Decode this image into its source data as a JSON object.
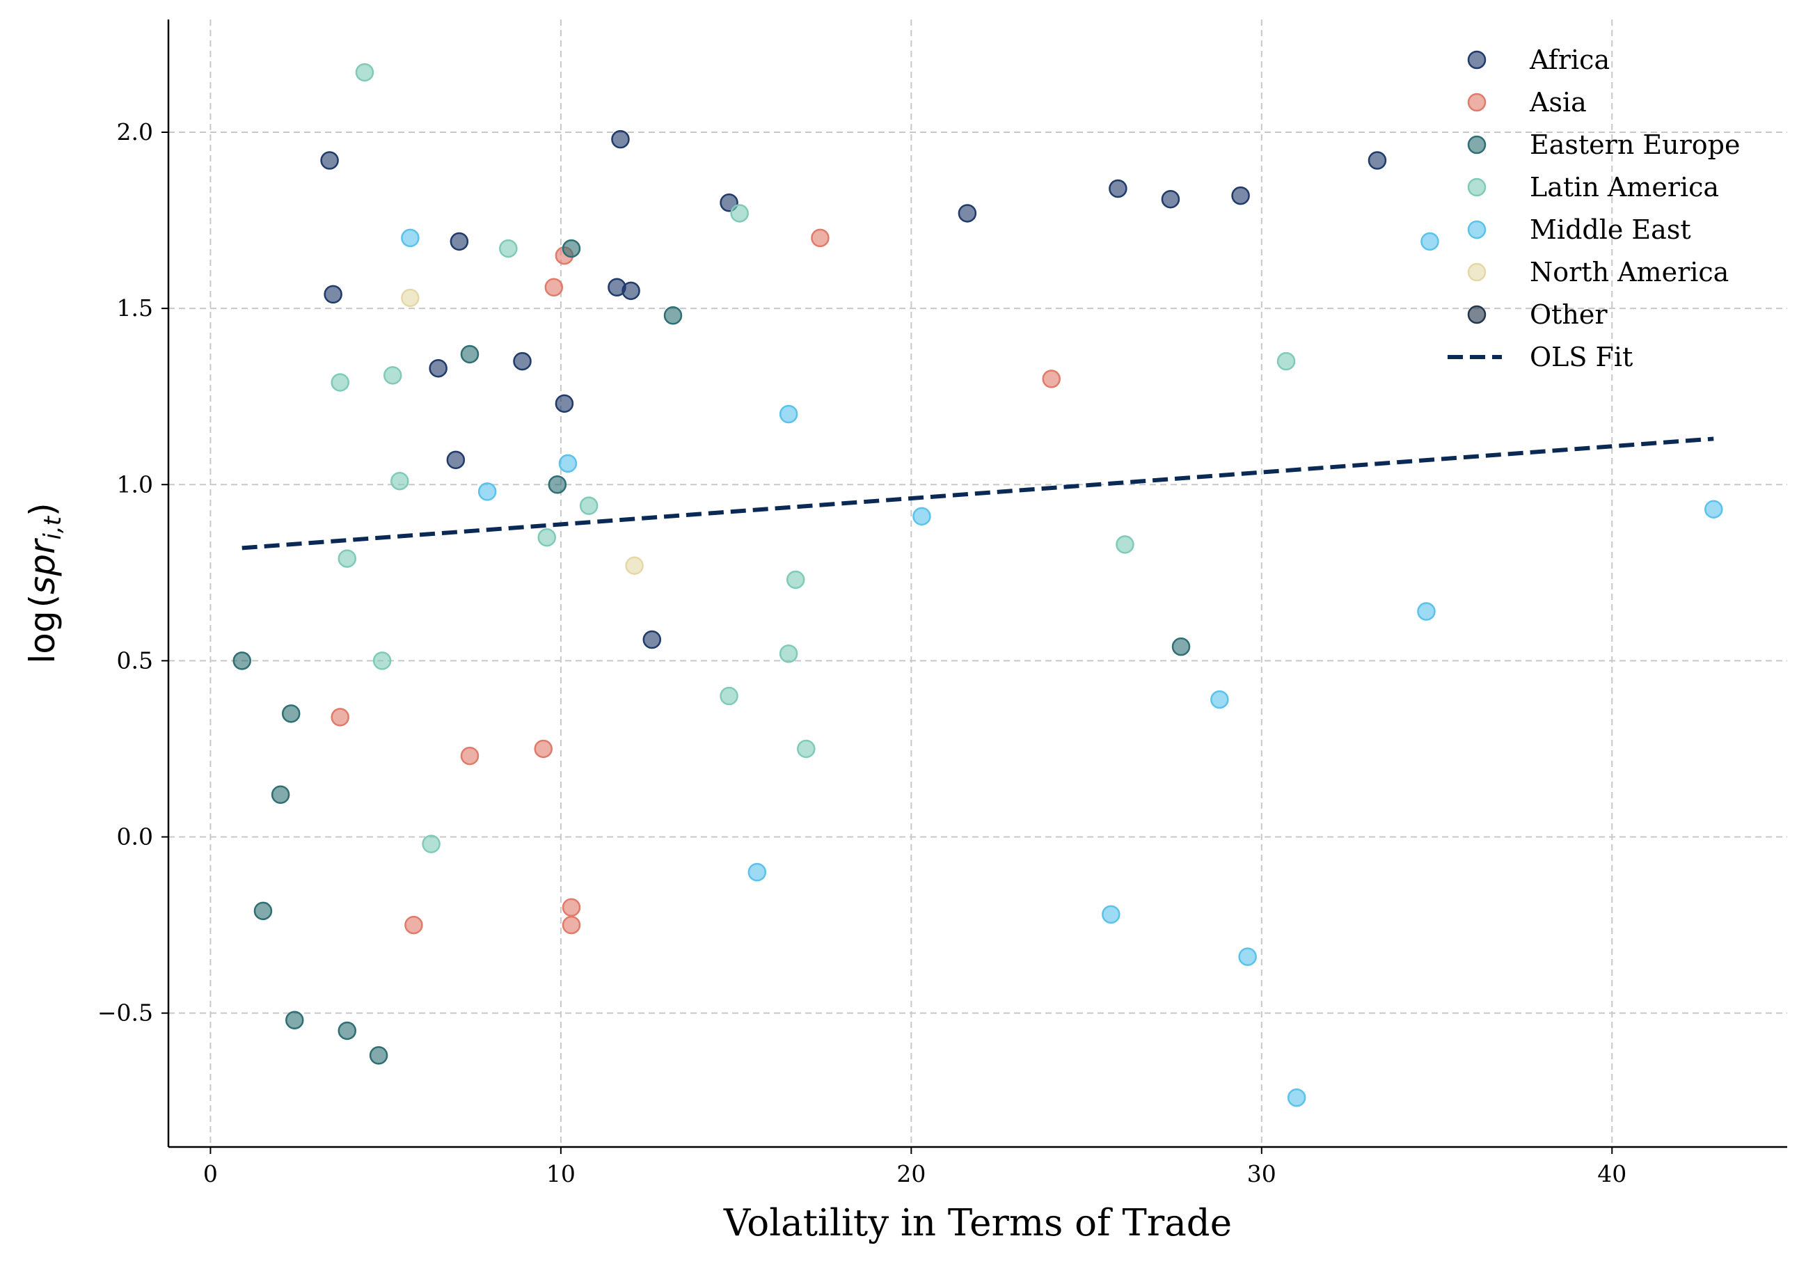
{
  "chart_data": {
    "type": "scatter",
    "xlabel": "Volatility in Terms of Trade",
    "ylabel": "log(spr_{i,t})",
    "ylabel_parts": {
      "prefix": "log",
      "open": "(",
      "main": "spr",
      "sub": "i,t",
      "close": ")"
    },
    "xlim": [
      -1.2,
      45.0
    ],
    "ylim": [
      -0.88,
      2.32
    ],
    "xticks": [
      0,
      10,
      20,
      30,
      40
    ],
    "yticks": [
      -0.5,
      0.0,
      0.5,
      1.0,
      1.5,
      2.0
    ],
    "xtick_labels": [
      "0",
      "10",
      "20",
      "30",
      "40"
    ],
    "ytick_labels": [
      "−0.5",
      "0.0",
      "0.5",
      "1.0",
      "1.5",
      "2.0"
    ],
    "grid": true,
    "legend_position": "top-right",
    "series": [
      {
        "name": "Africa",
        "color": "#1f3a6b",
        "points": [
          [
            3.4,
            1.92
          ],
          [
            3.5,
            1.54
          ],
          [
            6.5,
            1.33
          ],
          [
            7.0,
            1.07
          ],
          [
            7.1,
            1.69
          ],
          [
            8.9,
            1.35
          ],
          [
            10.1,
            1.23
          ],
          [
            11.6,
            1.56
          ],
          [
            11.7,
            1.98
          ],
          [
            12.0,
            1.55
          ],
          [
            12.6,
            0.56
          ],
          [
            14.8,
            1.8
          ],
          [
            21.6,
            1.77
          ],
          [
            25.9,
            1.84
          ],
          [
            27.4,
            1.81
          ],
          [
            29.4,
            1.82
          ],
          [
            33.3,
            1.92
          ]
        ]
      },
      {
        "name": "Asia",
        "color": "#e07b6a",
        "points": [
          [
            3.7,
            0.34
          ],
          [
            5.8,
            -0.25
          ],
          [
            7.4,
            0.23
          ],
          [
            9.5,
            0.25
          ],
          [
            9.8,
            1.56
          ],
          [
            10.1,
            1.65
          ],
          [
            10.3,
            -0.2
          ],
          [
            10.3,
            -0.25
          ],
          [
            17.4,
            1.7
          ],
          [
            24.0,
            1.3
          ]
        ]
      },
      {
        "name": "Eastern Europe",
        "color": "#2e6f73",
        "points": [
          [
            0.9,
            0.5
          ],
          [
            1.5,
            -0.21
          ],
          [
            2.0,
            0.12
          ],
          [
            2.3,
            0.35
          ],
          [
            2.4,
            -0.52
          ],
          [
            3.9,
            -0.55
          ],
          [
            4.8,
            -0.62
          ],
          [
            7.4,
            1.37
          ],
          [
            9.9,
            1.0
          ],
          [
            10.3,
            1.67
          ],
          [
            13.2,
            1.48
          ],
          [
            27.7,
            0.54
          ]
        ]
      },
      {
        "name": "Latin America",
        "color": "#7fcbb7",
        "points": [
          [
            3.7,
            1.29
          ],
          [
            3.9,
            0.79
          ],
          [
            4.4,
            2.17
          ],
          [
            4.9,
            0.5
          ],
          [
            5.2,
            1.31
          ],
          [
            5.4,
            1.01
          ],
          [
            6.3,
            -0.02
          ],
          [
            8.5,
            1.67
          ],
          [
            9.6,
            0.85
          ],
          [
            10.8,
            0.94
          ],
          [
            14.8,
            0.4
          ],
          [
            15.1,
            1.77
          ],
          [
            16.5,
            0.52
          ],
          [
            16.7,
            0.73
          ],
          [
            17.0,
            0.25
          ],
          [
            26.1,
            0.83
          ],
          [
            30.7,
            1.35
          ]
        ]
      },
      {
        "name": "Middle East",
        "color": "#5bc2ec",
        "points": [
          [
            5.7,
            1.7
          ],
          [
            7.9,
            0.98
          ],
          [
            10.2,
            1.06
          ],
          [
            15.6,
            -0.1
          ],
          [
            16.5,
            1.2
          ],
          [
            20.3,
            0.91
          ],
          [
            25.7,
            -0.22
          ],
          [
            28.8,
            0.39
          ],
          [
            29.6,
            -0.34
          ],
          [
            31.0,
            -0.74
          ],
          [
            34.7,
            0.64
          ],
          [
            34.8,
            1.69
          ],
          [
            42.9,
            0.93
          ]
        ]
      },
      {
        "name": "North America",
        "color": "#e6d8a6",
        "points": [
          [
            5.7,
            1.53
          ],
          [
            12.1,
            0.77
          ]
        ]
      },
      {
        "name": "Other",
        "color": "#22364a",
        "points": []
      }
    ],
    "fit": {
      "name": "OLS Fit",
      "color": "#0a2a55",
      "style": "dashed",
      "x": [
        0.9,
        42.9
      ],
      "y": [
        0.82,
        1.13
      ]
    }
  }
}
